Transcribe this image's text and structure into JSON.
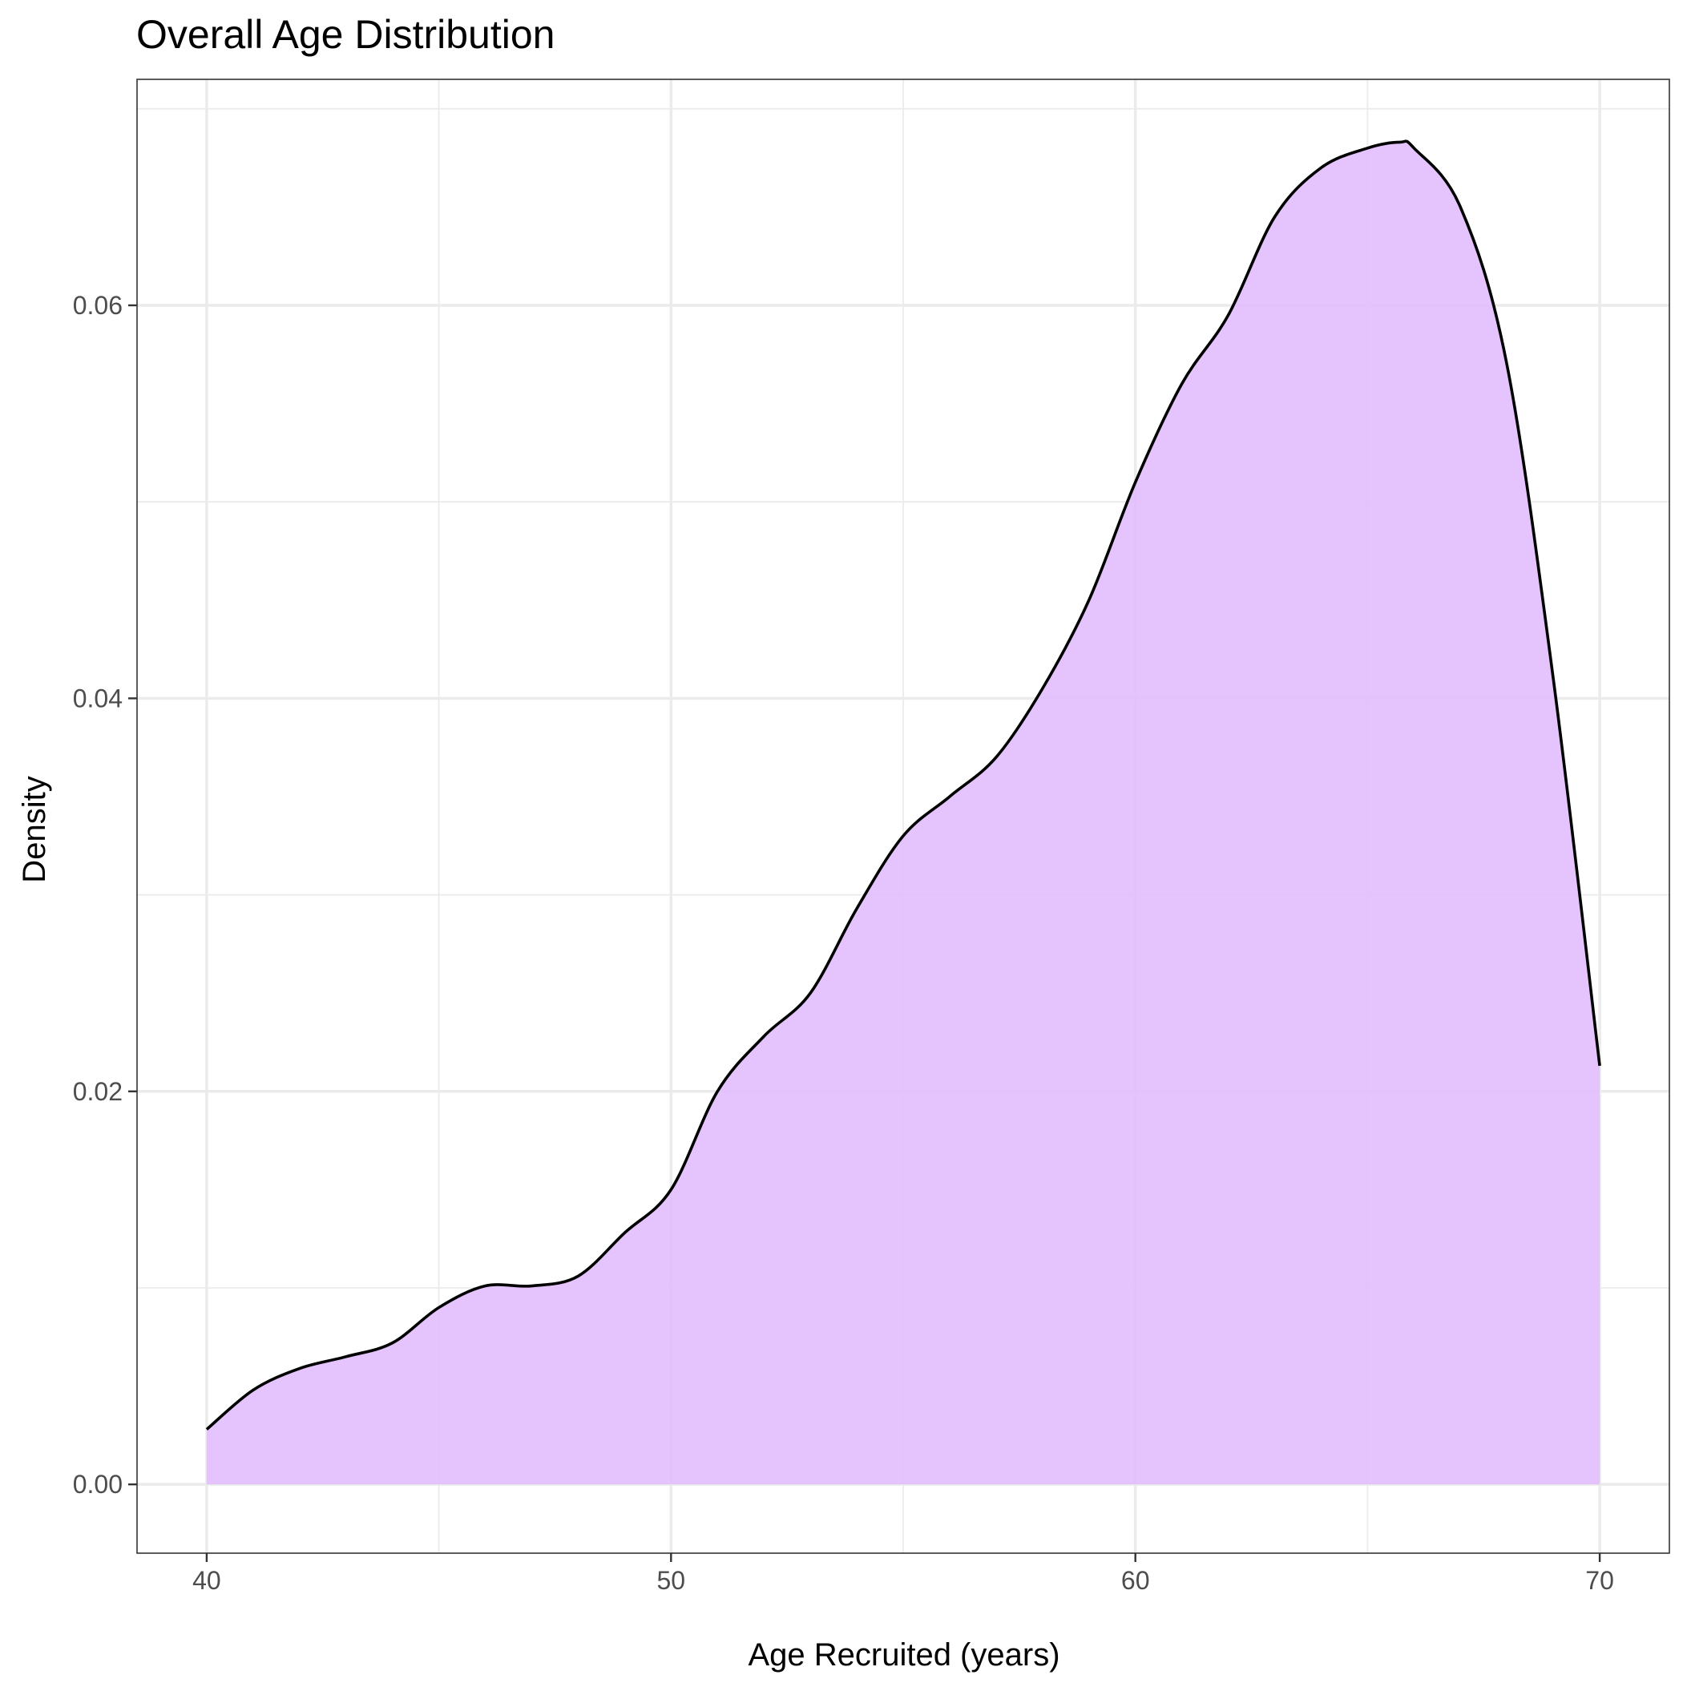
{
  "chart_data": {
    "type": "area",
    "title": "Overall Age Distribution",
    "xlabel": "Age Recruited (years)",
    "ylabel": "Density",
    "xlim": [
      38.5,
      71.5
    ],
    "ylim": [
      -0.0035,
      0.0715
    ],
    "x_ticks": [
      40,
      50,
      60,
      70
    ],
    "x_tick_labels": [
      "40",
      "50",
      "60",
      "70"
    ],
    "y_ticks": [
      0.0,
      0.02,
      0.04,
      0.06
    ],
    "y_tick_labels": [
      "0.00",
      "0.02",
      "0.04",
      "0.06"
    ],
    "x_minor_ticks": [
      45,
      55,
      65
    ],
    "y_minor_ticks": [
      0.01,
      0.03,
      0.05,
      0.07
    ],
    "grid": true,
    "legend": "none",
    "fill_color": "#e2bcfd",
    "line_color": "#000000",
    "series": [
      {
        "x": [
          40,
          41,
          42,
          43,
          44,
          45,
          46,
          47,
          48,
          49,
          50,
          51,
          52,
          53,
          54,
          55,
          56,
          57,
          58,
          59,
          60,
          61,
          62,
          63,
          64,
          65,
          65.7,
          66,
          67,
          68,
          69,
          70
        ],
        "y": [
          0.0028,
          0.0048,
          0.0059,
          0.0065,
          0.0072,
          0.009,
          0.0101,
          0.0101,
          0.0106,
          0.0128,
          0.015,
          0.02,
          0.0228,
          0.025,
          0.0293,
          0.033,
          0.035,
          0.037,
          0.0405,
          0.045,
          0.051,
          0.056,
          0.0595,
          0.0645,
          0.067,
          0.068,
          0.0683,
          0.068,
          0.065,
          0.057,
          0.041,
          0.0213
        ]
      }
    ]
  }
}
